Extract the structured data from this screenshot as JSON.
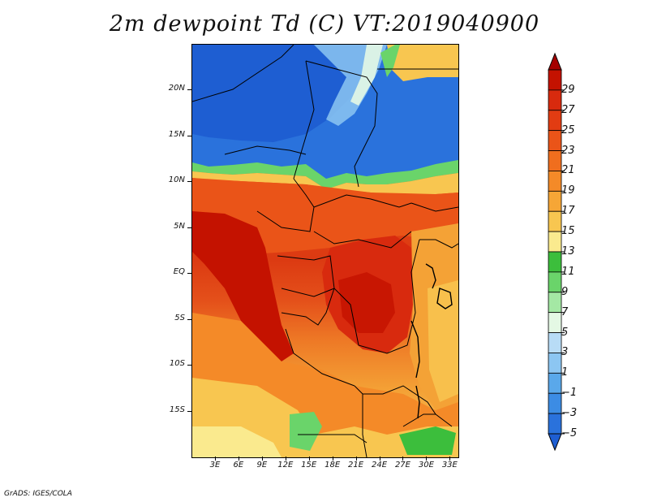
{
  "title": "2m dewpoint Td (C) VT:2019040900",
  "credit": "GrADS: IGES/COLA",
  "latitude_labels": [
    "20N",
    "15N",
    "10N",
    "5N",
    "EQ",
    "5S",
    "10S",
    "15S"
  ],
  "latitude_values": [
    20,
    15,
    10,
    5,
    0,
    -5,
    -10,
    -15
  ],
  "longitude_labels": [
    "3E",
    "6E",
    "9E",
    "12E",
    "15E",
    "18E",
    "21E",
    "24E",
    "27E",
    "30E",
    "33E"
  ],
  "longitude_values": [
    3,
    6,
    9,
    12,
    15,
    18,
    21,
    24,
    27,
    30,
    33
  ],
  "map_extent": {
    "lon_min": 0,
    "lon_max": 34,
    "lat_min": -20,
    "lat_max": 25
  },
  "colorbar": {
    "labels": [
      "29",
      "27",
      "25",
      "23",
      "21",
      "19",
      "17",
      "15",
      "13",
      "11",
      "9",
      "7",
      "5",
      "3",
      "1",
      "−1",
      "−3",
      "−5"
    ],
    "colors": [
      "#a50000",
      "#c41200",
      "#d82a0e",
      "#e23c12",
      "#ea5418",
      "#f06e1e",
      "#f48a28",
      "#f6a636",
      "#f8c650",
      "#faea8e",
      "#3cbe3c",
      "#6ad46a",
      "#a4e8a4",
      "#e4f8e4",
      "#b8dcf6",
      "#8cc6f2",
      "#5aa8ea",
      "#3c8ce4",
      "#2a72dc",
      "#1e5ed2"
    ]
  }
}
